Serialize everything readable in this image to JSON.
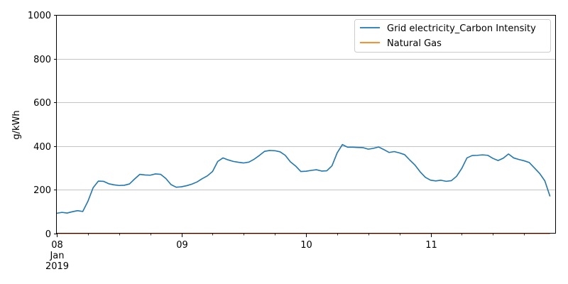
{
  "chart_data": {
    "type": "line",
    "ylabel": "g/kWh",
    "xlabel": "",
    "ylim": [
      0,
      1000
    ],
    "y_ticks": [
      0,
      200,
      400,
      600,
      800,
      1000
    ],
    "x_range": [
      "2019-01-08T00:00",
      "2019-01-12T00:00"
    ],
    "x_tick_labels": [
      {
        "lines": [
          "08",
          "Jan",
          "2019"
        ],
        "at": "2019-01-08T00:00"
      },
      {
        "lines": [
          "09"
        ],
        "at": "2019-01-09T00:00"
      },
      {
        "lines": [
          "10"
        ],
        "at": "2019-01-10T00:00"
      },
      {
        "lines": [
          "11"
        ],
        "at": "2019-01-11T00:00"
      }
    ],
    "grid": "horizontal",
    "legend_position": "top-right",
    "colors": {
      "Grid electricity_Carbon Intensity": "#1f77b4",
      "Natural Gas": "#ff7f0e"
    },
    "series": [
      {
        "name": "Grid electricity_Carbon Intensity",
        "x": [
          "2019-01-08T00:00",
          "2019-01-08T01:00",
          "2019-01-08T02:00",
          "2019-01-08T03:00",
          "2019-01-08T04:00",
          "2019-01-08T05:00",
          "2019-01-08T06:00",
          "2019-01-08T07:00",
          "2019-01-08T08:00",
          "2019-01-08T09:00",
          "2019-01-08T10:00",
          "2019-01-08T11:00",
          "2019-01-08T12:00",
          "2019-01-08T13:00",
          "2019-01-08T14:00",
          "2019-01-08T15:00",
          "2019-01-08T16:00",
          "2019-01-08T17:00",
          "2019-01-08T18:00",
          "2019-01-08T19:00",
          "2019-01-08T20:00",
          "2019-01-08T21:00",
          "2019-01-08T22:00",
          "2019-01-08T23:00",
          "2019-01-09T00:00",
          "2019-01-09T01:00",
          "2019-01-09T02:00",
          "2019-01-09T03:00",
          "2019-01-09T04:00",
          "2019-01-09T05:00",
          "2019-01-09T06:00",
          "2019-01-09T07:00",
          "2019-01-09T08:00",
          "2019-01-09T09:00",
          "2019-01-09T10:00",
          "2019-01-09T11:00",
          "2019-01-09T12:00",
          "2019-01-09T13:00",
          "2019-01-09T14:00",
          "2019-01-09T15:00",
          "2019-01-09T16:00",
          "2019-01-09T17:00",
          "2019-01-09T18:00",
          "2019-01-09T19:00",
          "2019-01-09T20:00",
          "2019-01-09T21:00",
          "2019-01-09T22:00",
          "2019-01-09T23:00",
          "2019-01-10T00:00",
          "2019-01-10T01:00",
          "2019-01-10T02:00",
          "2019-01-10T03:00",
          "2019-01-10T04:00",
          "2019-01-10T05:00",
          "2019-01-10T06:00",
          "2019-01-10T07:00",
          "2019-01-10T08:00",
          "2019-01-10T09:00",
          "2019-01-10T10:00",
          "2019-01-10T11:00",
          "2019-01-10T12:00",
          "2019-01-10T13:00",
          "2019-01-10T14:00",
          "2019-01-10T15:00",
          "2019-01-10T16:00",
          "2019-01-10T17:00",
          "2019-01-10T18:00",
          "2019-01-10T19:00",
          "2019-01-10T20:00",
          "2019-01-10T21:00",
          "2019-01-10T22:00",
          "2019-01-10T23:00",
          "2019-01-11T00:00",
          "2019-01-11T01:00",
          "2019-01-11T02:00",
          "2019-01-11T03:00",
          "2019-01-11T04:00",
          "2019-01-11T05:00",
          "2019-01-11T06:00",
          "2019-01-11T07:00",
          "2019-01-11T08:00",
          "2019-01-11T09:00",
          "2019-01-11T10:00",
          "2019-01-11T11:00",
          "2019-01-11T12:00",
          "2019-01-11T13:00",
          "2019-01-11T14:00",
          "2019-01-11T15:00",
          "2019-01-11T16:00",
          "2019-01-11T17:00",
          "2019-01-11T18:00",
          "2019-01-11T19:00",
          "2019-01-11T20:00",
          "2019-01-11T21:00",
          "2019-01-11T22:00",
          "2019-01-11T23:00"
        ],
        "y": [
          93,
          97,
          94,
          100,
          105,
          101,
          148,
          210,
          240,
          239,
          228,
          223,
          220,
          221,
          227,
          250,
          271,
          268,
          267,
          273,
          271,
          252,
          224,
          212,
          214,
          219,
          226,
          236,
          251,
          264,
          284,
          330,
          346,
          337,
          330,
          326,
          323,
          327,
          340,
          357,
          376,
          380,
          379,
          374,
          358,
          328,
          309,
          284,
          285,
          289,
          292,
          286,
          287,
          310,
          369,
          407,
          395,
          395,
          394,
          393,
          386,
          390,
          396,
          384,
          371,
          375,
          369,
          361,
          336,
          313,
          282,
          257,
          244,
          241,
          244,
          239,
          242,
          262,
          298,
          346,
          357,
          358,
          360,
          358,
          344,
          334,
          345,
          364,
          346,
          339,
          333,
          325,
          300,
          275,
          241,
          170
        ]
      },
      {
        "name": "Natural Gas",
        "x": [
          "2019-01-08T00:00",
          "2019-01-11T23:00"
        ],
        "y": [
          0,
          0
        ]
      }
    ]
  }
}
